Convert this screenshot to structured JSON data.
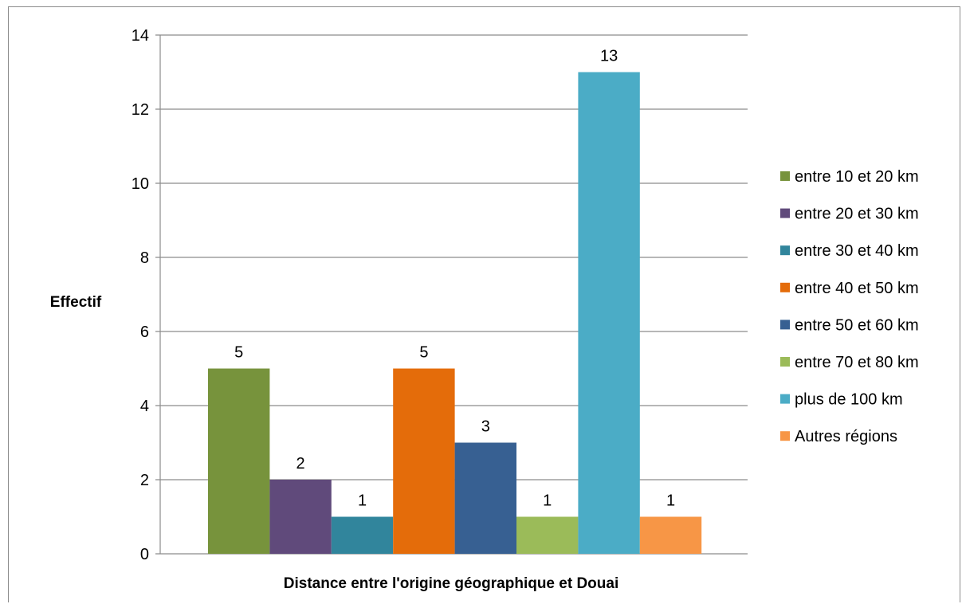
{
  "chart_data": {
    "type": "bar",
    "title": "",
    "xlabel": "Distance entre l'origine géographique et Douai",
    "ylabel": "Effectif",
    "ylim": [
      0,
      14
    ],
    "y_ticks": [
      0,
      2,
      4,
      6,
      8,
      10,
      12,
      14
    ],
    "grid": true,
    "legend_position": "right",
    "series": [
      {
        "name": "entre 10 et 20 km",
        "value": 5,
        "color": "#77933c"
      },
      {
        "name": "entre 20 et 30 km",
        "value": 2,
        "color": "#604a7b"
      },
      {
        "name": "entre 30 et 40 km",
        "value": 1,
        "color": "#31859c"
      },
      {
        "name": "entre 40 et 50 km",
        "value": 5,
        "color": "#e46c0a"
      },
      {
        "name": "entre 50 et 60 km",
        "value": 3,
        "color": "#376092"
      },
      {
        "name": "entre 70 et 80 km",
        "value": 1,
        "color": "#9bbb59"
      },
      {
        "name": "plus de 100 km",
        "value": 13,
        "color": "#4bacc6"
      },
      {
        "name": "Autres régions",
        "value": 1,
        "color": "#f79646"
      }
    ]
  }
}
